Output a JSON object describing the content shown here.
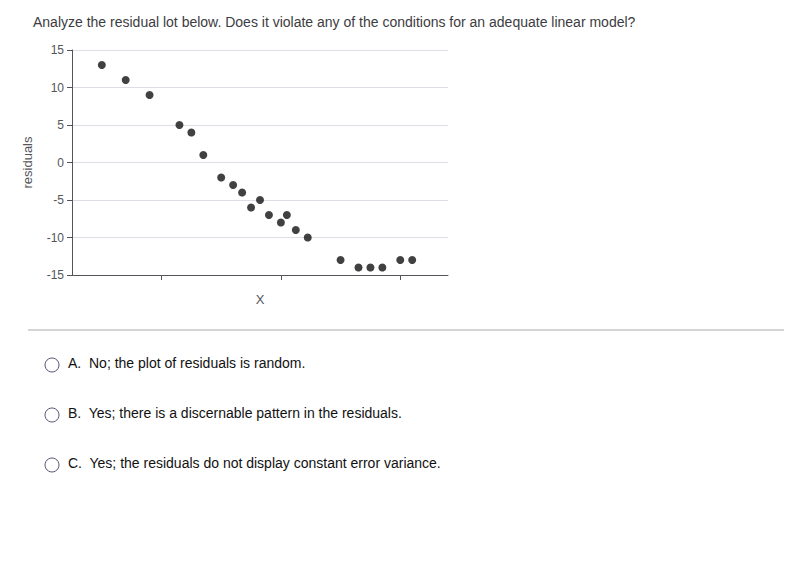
{
  "chart_data": {
    "type": "scatter",
    "title": "Analyze the residual lot below. Does it violate any of the conditions for an adequate linear model?",
    "xlabel": "X",
    "ylabel": "residuals",
    "x": [
      1.0,
      1.4,
      1.8,
      2.3,
      2.5,
      2.7,
      3.0,
      3.2,
      3.35,
      3.5,
      3.65,
      3.8,
      4.0,
      4.1,
      4.25,
      4.45,
      5.0,
      5.3,
      5.5,
      5.7,
      6.0,
      6.2
    ],
    "values": [
      13,
      11,
      9,
      5,
      4,
      1,
      -2,
      -3,
      -4,
      -6,
      -5,
      -7,
      -8,
      -7,
      -9,
      -10,
      -13,
      -14,
      -14,
      -14,
      -13,
      -13
    ],
    "color": "#111111",
    "xlim": [
      0.5,
      6.8
    ],
    "xticks": [
      2,
      4,
      6
    ],
    "ylim": [
      -15,
      15
    ],
    "yticks": [
      -15,
      -10,
      -5,
      0,
      5,
      10,
      15
    ],
    "grid": true,
    "tick_labels": "y",
    "annotations": [
      "A.  No; the plot of residuals is random.",
      "B.  Yes; there is a discernable pattern in the residuals.",
      "C.  Yes; the residuals do not display constant error variance."
    ]
  }
}
